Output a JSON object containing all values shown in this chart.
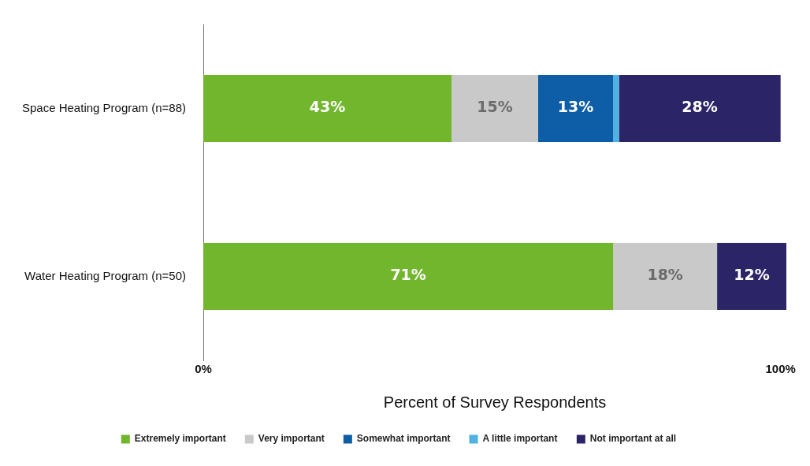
{
  "chart_data": {
    "type": "bar",
    "orientation": "horizontal",
    "stacked": true,
    "categories": [
      "Space Heating Program (n=88)",
      "Water Heating Program (n=50)"
    ],
    "xlabel": "Percent of Survey Respondents",
    "xlim": [
      0,
      101
    ],
    "xticks": [
      {
        "value": 0,
        "label": "0%"
      },
      {
        "value": 100,
        "label": "100%"
      }
    ],
    "grid": false,
    "legend": "bottom",
    "series": [
      {
        "name": "Extremely important",
        "color": "#72b62e",
        "values": [
          43,
          71
        ],
        "value_labels": [
          "43%",
          "71%"
        ]
      },
      {
        "name": "Very important",
        "color": "#c9c9c9",
        "values": [
          15,
          18
        ],
        "value_labels": [
          "15%",
          "18%"
        ]
      },
      {
        "name": "Somewhat important",
        "color": "#0d5ea6",
        "values": [
          13,
          0
        ],
        "value_labels": [
          "13%",
          null
        ]
      },
      {
        "name": "A little important",
        "color": "#4fb2e3",
        "values": [
          1,
          0
        ],
        "value_labels": [
          null,
          null
        ]
      },
      {
        "name": "Not important at all",
        "color": "#2b2466",
        "values": [
          28,
          12
        ],
        "value_labels": [
          "28%",
          "12%"
        ]
      }
    ]
  }
}
